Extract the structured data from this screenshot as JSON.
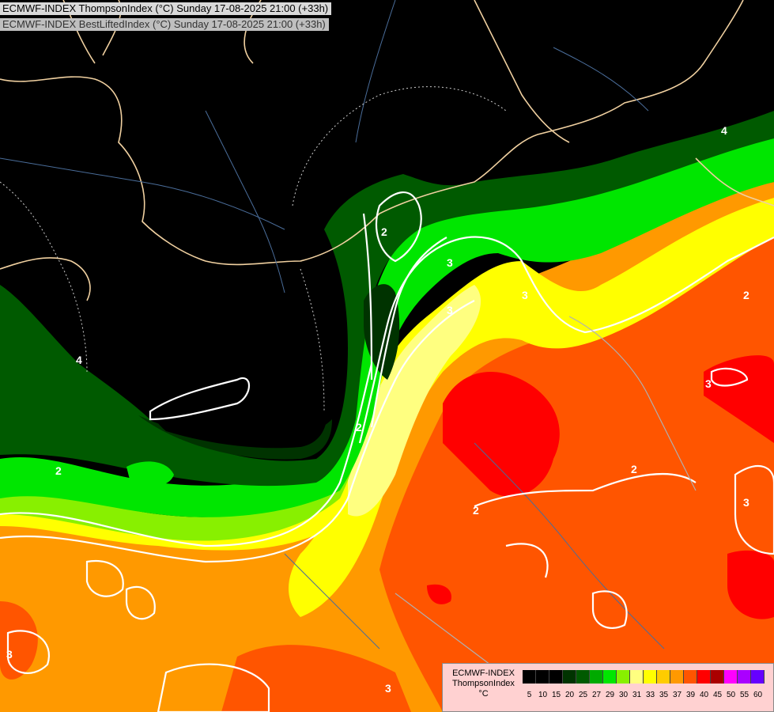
{
  "titles": {
    "line1": "ECMWF-INDEX ThompsonIndex (°C) Sunday 17-08-2025 21:00 (+33h)",
    "line2": "ECMWF-INDEX BestLiftedIndex (°C) Sunday 17-08-2025 21:00 (+33h)"
  },
  "legend": {
    "label_line1": "ECMWF-INDEX",
    "label_line2": "ThompsonIndex",
    "label_line3": "°C",
    "bins": [
      {
        "value": "5",
        "color": "#000000"
      },
      {
        "value": "10",
        "color": "#000000"
      },
      {
        "value": "15",
        "color": "#000000"
      },
      {
        "value": "20",
        "color": "#003300"
      },
      {
        "value": "25",
        "color": "#005a00"
      },
      {
        "value": "27",
        "color": "#00aa00"
      },
      {
        "value": "29",
        "color": "#00e600"
      },
      {
        "value": "30",
        "color": "#88f000"
      },
      {
        "value": "31",
        "color": "#ffff80"
      },
      {
        "value": "33",
        "color": "#ffff00"
      },
      {
        "value": "35",
        "color": "#ffcc00"
      },
      {
        "value": "37",
        "color": "#ff9900"
      },
      {
        "value": "39",
        "color": "#ff5500"
      },
      {
        "value": "40",
        "color": "#ff0000"
      },
      {
        "value": "45",
        "color": "#aa0000"
      },
      {
        "value": "50",
        "color": "#ff00ff"
      },
      {
        "value": "55",
        "color": "#aa00ff"
      },
      {
        "value": "60",
        "color": "#6600ff"
      }
    ]
  },
  "contour_labels": [
    "4",
    "2",
    "3",
    "4",
    "2",
    "3",
    "2",
    "3",
    "2",
    "2",
    "3",
    "2",
    "3",
    "3",
    "3"
  ]
}
